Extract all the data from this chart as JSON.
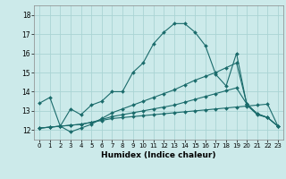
{
  "xlabel": "Humidex (Indice chaleur)",
  "bg_color": "#cceaea",
  "line_color": "#1a6b6b",
  "grid_color": "#aad4d4",
  "xlim": [
    -0.5,
    23.5
  ],
  "ylim": [
    11.5,
    18.5
  ],
  "yticks": [
    12,
    13,
    14,
    15,
    16,
    17,
    18
  ],
  "xticks": [
    0,
    1,
    2,
    3,
    4,
    5,
    6,
    7,
    8,
    9,
    10,
    11,
    12,
    13,
    14,
    15,
    16,
    17,
    18,
    19,
    20,
    21,
    22,
    23
  ],
  "lines": [
    {
      "x": [
        0,
        1,
        2,
        3,
        4,
        5,
        6,
        7,
        8,
        9,
        10,
        11,
        12,
        13,
        14,
        15,
        16,
        17,
        18,
        19,
        20,
        21,
        22,
        23
      ],
      "y": [
        13.4,
        13.7,
        12.2,
        13.1,
        12.8,
        13.3,
        13.5,
        14.0,
        14.0,
        15.0,
        15.5,
        16.5,
        17.1,
        17.55,
        17.55,
        17.1,
        16.4,
        14.9,
        14.3,
        16.0,
        13.3,
        12.8,
        12.65,
        12.2
      ]
    },
    {
      "x": [
        0,
        1,
        2,
        3,
        4,
        5,
        6,
        7,
        8,
        9,
        10,
        11,
        12,
        13,
        14,
        15,
        16,
        17,
        18,
        19,
        20,
        21,
        22,
        23
      ],
      "y": [
        12.1,
        12.15,
        12.2,
        12.25,
        12.3,
        12.4,
        12.5,
        12.6,
        12.65,
        12.7,
        12.75,
        12.8,
        12.85,
        12.9,
        12.95,
        13.0,
        13.05,
        13.1,
        13.15,
        13.2,
        13.25,
        13.3,
        13.35,
        12.2
      ]
    },
    {
      "x": [
        0,
        1,
        2,
        3,
        4,
        5,
        6,
        7,
        8,
        9,
        10,
        11,
        12,
        13,
        14,
        15,
        16,
        17,
        18,
        19,
        20,
        21,
        22,
        23
      ],
      "y": [
        12.1,
        12.15,
        12.2,
        12.25,
        12.3,
        12.4,
        12.55,
        12.7,
        12.8,
        12.9,
        13.0,
        13.1,
        13.2,
        13.3,
        13.45,
        13.6,
        13.75,
        13.9,
        14.05,
        14.2,
        13.35,
        12.85,
        12.65,
        12.2
      ]
    },
    {
      "x": [
        0,
        1,
        2,
        3,
        4,
        5,
        6,
        7,
        8,
        9,
        10,
        11,
        12,
        13,
        14,
        15,
        16,
        17,
        18,
        19,
        20,
        21,
        22,
        23
      ],
      "y": [
        12.1,
        12.15,
        12.2,
        11.9,
        12.1,
        12.3,
        12.6,
        12.9,
        13.1,
        13.3,
        13.5,
        13.7,
        13.9,
        14.1,
        14.35,
        14.6,
        14.8,
        15.0,
        15.25,
        15.5,
        13.35,
        12.85,
        12.65,
        12.2
      ]
    }
  ]
}
